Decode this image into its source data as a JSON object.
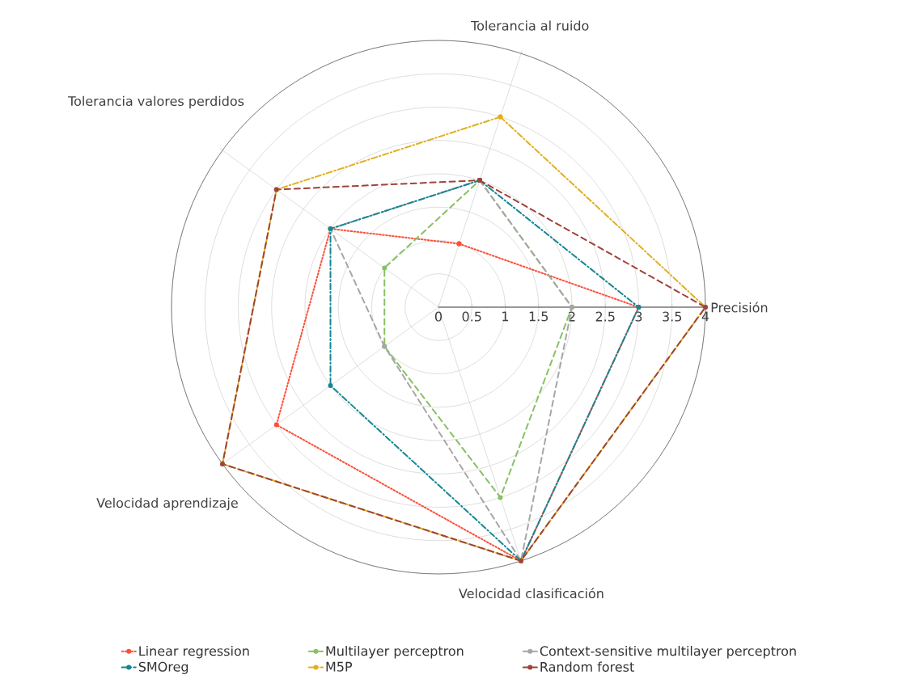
{
  "chart_data": {
    "type": "radar",
    "categories": [
      "Tolerancia al ruido",
      "Precisión",
      "Velocidad clasificación",
      "Velocidad aprendizaje",
      "Tolerancia valores perdidos"
    ],
    "ylim": [
      0,
      4
    ],
    "yticks": [
      0,
      0.5,
      1,
      1.5,
      2,
      2.5,
      3,
      3.5,
      4
    ],
    "grid": true,
    "legend": "bottom",
    "marker": "circle",
    "series": [
      {
        "name": "Linear regression",
        "color": "#fc4f3a",
        "line_style": "dotted",
        "values": [
          1,
          3,
          4,
          3,
          2
        ]
      },
      {
        "name": "Multilayer perceptron",
        "color": "#86c163",
        "line_style": "dashed",
        "values": [
          2,
          2,
          3,
          1,
          1
        ]
      },
      {
        "name": "Context-sensitive multilayer perceptron",
        "color": "#a6a6a6",
        "line_style": "dashed",
        "values": [
          2,
          2,
          4,
          1,
          2
        ]
      },
      {
        "name": "SMOreg",
        "color": "#168694",
        "line_style": "dashdot",
        "values": [
          2,
          3,
          4,
          2,
          2
        ]
      },
      {
        "name": "M5P",
        "color": "#e3af1e",
        "line_style": "dashdot",
        "values": [
          3,
          4,
          4,
          4,
          3
        ]
      },
      {
        "name": "Random forest",
        "color": "#9e443a",
        "line_style": "dashed",
        "values": [
          2,
          4,
          4,
          4,
          3
        ]
      }
    ]
  }
}
